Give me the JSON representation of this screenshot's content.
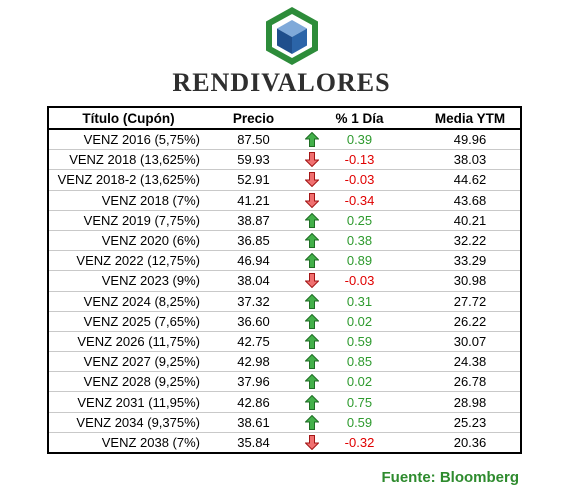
{
  "brand": {
    "name": "RENDIVALORES",
    "logo_icon": "hexagon-cube-icon",
    "colors": {
      "green": "#2d8c3a",
      "blue": "#1f4e8c"
    }
  },
  "table": {
    "headers": {
      "title": "Título (Cupón)",
      "price": "Precio",
      "change": "% 1 Día",
      "ytm": "Media YTM"
    },
    "rows": [
      {
        "title": "VENZ 2016 (5,75%)",
        "price": "87.50",
        "change": "0.39",
        "direction": "up",
        "ytm": "49.96"
      },
      {
        "title": "VENZ 2018 (13,625%)",
        "price": "59.93",
        "change": "-0.13",
        "direction": "down",
        "ytm": "38.03"
      },
      {
        "title": "VENZ 2018-2 (13,625%)",
        "price": "52.91",
        "change": "-0.03",
        "direction": "down",
        "ytm": "44.62"
      },
      {
        "title": "VENZ 2018 (7%)",
        "price": "41.21",
        "change": "-0.34",
        "direction": "down",
        "ytm": "43.68"
      },
      {
        "title": "VENZ 2019 (7,75%)",
        "price": "38.87",
        "change": "0.25",
        "direction": "up",
        "ytm": "40.21"
      },
      {
        "title": "VENZ 2020 (6%)",
        "price": "36.85",
        "change": "0.38",
        "direction": "up",
        "ytm": "32.22"
      },
      {
        "title": "VENZ 2022 (12,75%)",
        "price": "46.94",
        "change": "0.89",
        "direction": "up",
        "ytm": "33.29"
      },
      {
        "title": "VENZ 2023 (9%)",
        "price": "38.04",
        "change": "-0.03",
        "direction": "down",
        "ytm": "30.98"
      },
      {
        "title": "VENZ 2024 (8,25%)",
        "price": "37.32",
        "change": "0.31",
        "direction": "up",
        "ytm": "27.72"
      },
      {
        "title": "VENZ 2025 (7,65%)",
        "price": "36.60",
        "change": "0.02",
        "direction": "up",
        "ytm": "26.22"
      },
      {
        "title": "VENZ 2026 (11,75%)",
        "price": "42.75",
        "change": "0.59",
        "direction": "up",
        "ytm": "30.07"
      },
      {
        "title": "VENZ 2027 (9,25%)",
        "price": "42.98",
        "change": "0.85",
        "direction": "up",
        "ytm": "24.38"
      },
      {
        "title": "VENZ 2028 (9,25%)",
        "price": "37.96",
        "change": "0.02",
        "direction": "up",
        "ytm": "26.78"
      },
      {
        "title": "VENZ 2031 (11,95%)",
        "price": "42.86",
        "change": "0.75",
        "direction": "up",
        "ytm": "28.98"
      },
      {
        "title": "VENZ 2034 (9,375%)",
        "price": "38.61",
        "change": "0.59",
        "direction": "up",
        "ytm": "25.23"
      },
      {
        "title": "VENZ 2038 (7%)",
        "price": "35.84",
        "change": "-0.32",
        "direction": "down",
        "ytm": "20.36"
      }
    ],
    "colors": {
      "up": "#2e9a2e",
      "down": "#e00000"
    },
    "icons": {
      "up": "green-up-arrow-icon",
      "down": "red-down-arrow-icon"
    }
  },
  "source": "Fuente: Bloomberg"
}
